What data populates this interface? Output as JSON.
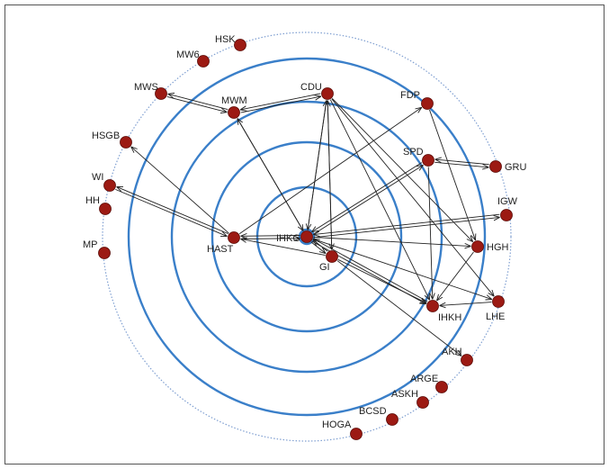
{
  "diagram": {
    "nodes": [
      {
        "id": "HSK",
        "label": "HSK"
      },
      {
        "id": "MW6",
        "label": "MW6"
      },
      {
        "id": "MWS",
        "label": "MWS"
      },
      {
        "id": "MWM",
        "label": "MWM"
      },
      {
        "id": "CDU",
        "label": "CDU"
      },
      {
        "id": "FDP",
        "label": "FDP"
      },
      {
        "id": "HSGB",
        "label": "HSGB"
      },
      {
        "id": "SPD",
        "label": "SPD"
      },
      {
        "id": "GRU",
        "label": "GRU"
      },
      {
        "id": "WI",
        "label": "WI"
      },
      {
        "id": "HH",
        "label": "HH"
      },
      {
        "id": "IGW",
        "label": "IGW"
      },
      {
        "id": "MP",
        "label": "MP"
      },
      {
        "id": "HAST",
        "label": "HAST"
      },
      {
        "id": "IHKG",
        "label": "IHKG"
      },
      {
        "id": "GI",
        "label": "GI"
      },
      {
        "id": "HGH",
        "label": "HGH"
      },
      {
        "id": "IHKH",
        "label": "IHKH"
      },
      {
        "id": "LHE",
        "label": "LHE"
      },
      {
        "id": "AKH",
        "label": "AKH"
      },
      {
        "id": "ARGE",
        "label": "ARGE"
      },
      {
        "id": "ASKH",
        "label": "ASKH"
      },
      {
        "id": "BCSD",
        "label": "BCSD"
      },
      {
        "id": "HOGA",
        "label": "HOGA"
      }
    ],
    "edges": [
      {
        "from": "MWS",
        "to": "MWM",
        "bidirectional": true
      },
      {
        "from": "MWM",
        "to": "CDU",
        "bidirectional": true
      },
      {
        "from": "IHKG",
        "to": "MWM",
        "bidirectional": false
      },
      {
        "from": "IHKG",
        "to": "CDU",
        "bidirectional": false
      },
      {
        "from": "GI",
        "to": "CDU",
        "bidirectional": false
      },
      {
        "from": "CDU",
        "to": "IHKG",
        "bidirectional": false
      },
      {
        "from": "CDU",
        "to": "GI",
        "bidirectional": false
      },
      {
        "from": "CDU",
        "to": "HGH",
        "bidirectional": false
      },
      {
        "from": "CDU",
        "to": "IHKH",
        "bidirectional": false
      },
      {
        "from": "CDU",
        "to": "LHE",
        "bidirectional": false
      },
      {
        "from": "HAST",
        "to": "FDP",
        "bidirectional": false
      },
      {
        "from": "FDP",
        "to": "HGH",
        "bidirectional": false
      },
      {
        "from": "HAST",
        "to": "HSGB",
        "bidirectional": false
      },
      {
        "from": "WI",
        "to": "HAST",
        "bidirectional": true
      },
      {
        "from": "IHKG",
        "to": "SPD",
        "bidirectional": true
      },
      {
        "from": "SPD",
        "to": "GRU",
        "bidirectional": true
      },
      {
        "from": "IHKG",
        "to": "IGW",
        "bidirectional": true
      },
      {
        "from": "IHKG",
        "to": "HAST",
        "bidirectional": true
      },
      {
        "from": "GI",
        "to": "HAST",
        "bidirectional": false
      },
      {
        "from": "IHKG",
        "to": "GI",
        "bidirectional": true
      },
      {
        "from": "IHKG",
        "to": "HGH",
        "bidirectional": false
      },
      {
        "from": "IHKG",
        "to": "LHE",
        "bidirectional": false
      },
      {
        "from": "IHKG",
        "to": "IHKH",
        "bidirectional": true
      },
      {
        "from": "GI",
        "to": "IHKH",
        "bidirectional": false
      },
      {
        "from": "HGH",
        "to": "IHKH",
        "bidirectional": false
      },
      {
        "from": "LHE",
        "to": "IHKH",
        "bidirectional": false
      },
      {
        "from": "GI",
        "to": "AKH",
        "bidirectional": false
      },
      {
        "from": "SPD",
        "to": "IHKH",
        "bidirectional": false
      },
      {
        "from": "MWM",
        "to": "IHKG",
        "bidirectional": false
      }
    ],
    "colors": {
      "ring": "#3a7fc9",
      "outer_ring": "#7f9fd1",
      "node_fill": "#9c1a13",
      "node_stroke": "#5a0a06",
      "edge": "#222222",
      "frame": "#555555"
    }
  }
}
